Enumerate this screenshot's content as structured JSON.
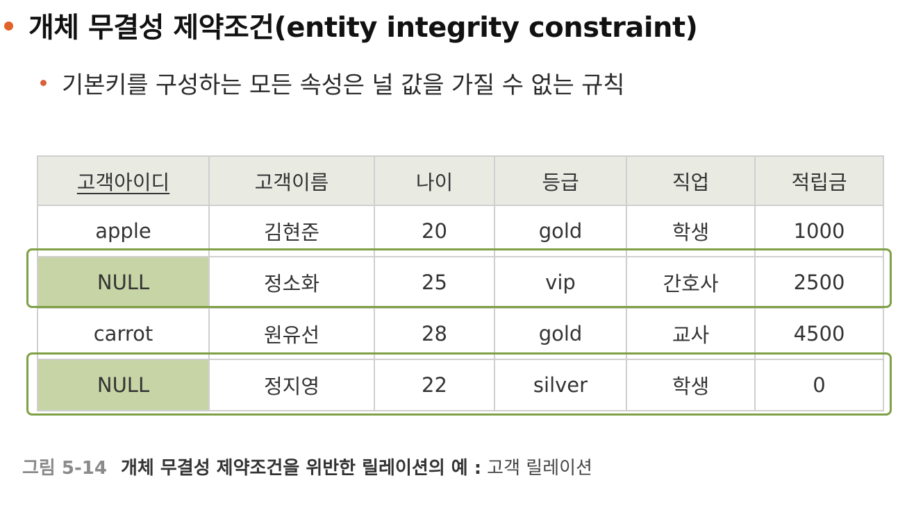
{
  "heading": {
    "text": "개체 무결성 제약조건(entity integrity constraint)"
  },
  "subheading": {
    "text": "기본키를 구성하는 모든 속성은 널 값을 가질 수 없는 규칙"
  },
  "table": {
    "headers": [
      "고객아이디",
      "고객이름",
      "나이",
      "등급",
      "직업",
      "적립금"
    ],
    "rows": [
      [
        "apple",
        "김현준",
        "20",
        "gold",
        "학생",
        "1000"
      ],
      [
        "NULL",
        "정소화",
        "25",
        "vip",
        "간호사",
        "2500"
      ],
      [
        "carrot",
        "원유선",
        "28",
        "gold",
        "교사",
        "4500"
      ],
      [
        "NULL",
        "정지영",
        "22",
        "silver",
        "학생",
        "0"
      ]
    ]
  },
  "caption": {
    "label": "그림 5-14",
    "title": "개체 무결성 제약조건을 위반한 릴레이션의 예 :",
    "subtitle": "고객 릴레이션"
  },
  "colors": {
    "bullet": "#e2622a",
    "header_bg": "#e9ebe3",
    "null_cell_bg": "#c7d5a6",
    "highlight_border": "#7ea045"
  }
}
